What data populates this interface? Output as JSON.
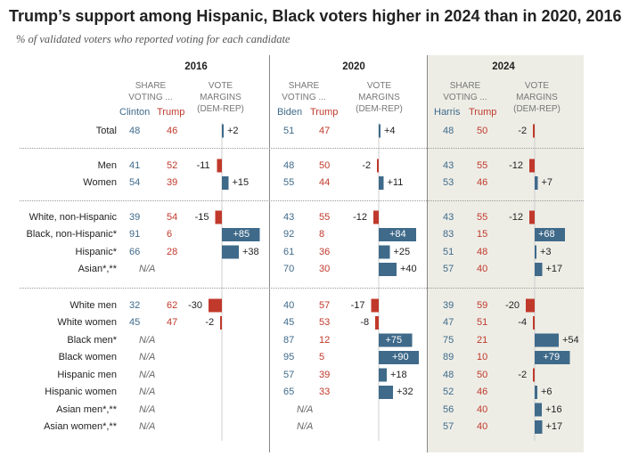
{
  "title": "Trump’s support among Hispanic, Black voters higher in 2024 than in 2020, 2016",
  "subtitle": "% of validated voters who reported voting for each candidate",
  "header": {
    "share_label_1": "SHARE",
    "share_label_2": "VOTING ...",
    "margin_label_1": "VOTE",
    "margin_label_2": "MARGINS",
    "margin_label_3": "(DEM-REP)"
  },
  "years": [
    {
      "year": "2016",
      "dem": "Clinton",
      "rep": "Trump"
    },
    {
      "year": "2020",
      "dem": "Biden",
      "rep": "Trump"
    },
    {
      "year": "2024",
      "dem": "Harris",
      "rep": "Trump"
    }
  ],
  "na_text": "N/A",
  "colors": {
    "dem": "#3f6a8a",
    "rep": "#c0392b",
    "highlight": "#edede6"
  },
  "chart_data": {
    "type": "table",
    "title": "Trump’s support among Hispanic, Black voters higher in 2024 than in 2020, 2016",
    "groups": [
      {
        "rows": [
          {
            "label": "Total",
            "y2016": [
              48,
              46,
              "+2",
              2
            ],
            "y2020": [
              51,
              47,
              "+4",
              4
            ],
            "y2024": [
              48,
              50,
              "-2",
              -2
            ]
          }
        ]
      },
      {
        "rows": [
          {
            "label": "Men",
            "y2016": [
              41,
              52,
              "-11",
              -11
            ],
            "y2020": [
              48,
              50,
              "-2",
              -2
            ],
            "y2024": [
              43,
              55,
              "-12",
              -12
            ]
          },
          {
            "label": "Women",
            "y2016": [
              54,
              39,
              "+15",
              15
            ],
            "y2020": [
              55,
              44,
              "+11",
              11
            ],
            "y2024": [
              53,
              46,
              "+7",
              7
            ]
          }
        ]
      },
      {
        "rows": [
          {
            "label": "White, non-Hispanic",
            "y2016": [
              39,
              54,
              "-15",
              -15
            ],
            "y2020": [
              43,
              55,
              "-12",
              -12
            ],
            "y2024": [
              43,
              55,
              "-12",
              -12
            ]
          },
          {
            "label": "Black, non-Hispanic*",
            "y2016": [
              91,
              6,
              "+85",
              85
            ],
            "y2020": [
              92,
              8,
              "+84",
              84
            ],
            "y2024": [
              83,
              15,
              "+68",
              68
            ]
          },
          {
            "label": "Hispanic*",
            "y2016": [
              66,
              28,
              "+38",
              38
            ],
            "y2020": [
              61,
              36,
              "+25",
              25
            ],
            "y2024": [
              51,
              48,
              "+3",
              3
            ]
          },
          {
            "label": "Asian*,**",
            "y2016": null,
            "y2020": [
              70,
              30,
              "+40",
              40
            ],
            "y2024": [
              57,
              40,
              "+17",
              17
            ]
          }
        ]
      },
      {
        "rows": [
          {
            "label": "White men",
            "y2016": [
              32,
              62,
              "-30",
              -30
            ],
            "y2020": [
              40,
              57,
              "-17",
              -17
            ],
            "y2024": [
              39,
              59,
              "-20",
              -20
            ]
          },
          {
            "label": "White women",
            "y2016": [
              45,
              47,
              "-2",
              -2
            ],
            "y2020": [
              45,
              53,
              "-8",
              -8
            ],
            "y2024": [
              47,
              51,
              "-4",
              -4
            ]
          },
          {
            "label": "Black men*",
            "y2016": null,
            "y2020": [
              87,
              12,
              "+75",
              75
            ],
            "y2024": [
              75,
              21,
              "+54",
              54
            ]
          },
          {
            "label": "Black women",
            "y2016": null,
            "y2020": [
              95,
              5,
              "+90",
              90
            ],
            "y2024": [
              89,
              10,
              "+79",
              79
            ]
          },
          {
            "label": "Hispanic men",
            "y2016": null,
            "y2020": [
              57,
              39,
              "+18",
              18
            ],
            "y2024": [
              48,
              50,
              "-2",
              -2
            ]
          },
          {
            "label": "Hispanic women",
            "y2016": null,
            "y2020": [
              65,
              33,
              "+32",
              32
            ],
            "y2024": [
              52,
              46,
              "+6",
              6
            ]
          },
          {
            "label": "Asian men*,**",
            "y2016": null,
            "y2020": null,
            "y2024": [
              56,
              40,
              "+16",
              16
            ]
          },
          {
            "label": "Asian women*,**",
            "y2016": null,
            "y2020": null,
            "y2024": [
              57,
              40,
              "+17",
              17
            ]
          }
        ]
      }
    ]
  }
}
